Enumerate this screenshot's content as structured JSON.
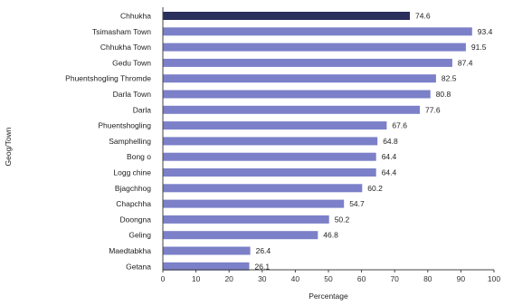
{
  "chart_data": {
    "type": "bar",
    "orientation": "horizontal",
    "categories": [
      "Chhukha",
      "Tsimasham Town",
      "Chhukha Town",
      "Gedu Town",
      "Phuentshogling Thromde",
      "Darla Town",
      "Darla",
      "Phuentshogling",
      "Samphelling",
      "Bong o",
      "Logg chine",
      "Bjagchhog",
      "Chapchha",
      "Doongna",
      "Geling",
      "Maedtabkha",
      "Getana"
    ],
    "values": [
      74.6,
      93.4,
      91.5,
      87.4,
      82.5,
      80.8,
      77.6,
      67.6,
      64.8,
      64.4,
      64.4,
      60.2,
      54.7,
      50.2,
      46.8,
      26.4,
      26.1
    ],
    "value_labels": [
      "74.6",
      "93.4",
      "91.5",
      "87.4",
      "82.5",
      "80.8",
      "77.6",
      "67.6",
      "64.8",
      "64.4",
      "64.4",
      "60.2",
      "54.7",
      "50.2",
      "46.8",
      "26.4",
      "26.1"
    ],
    "highlight_index": 0,
    "xlabel": "Percentage",
    "ylabel": "Geog/Town",
    "xlim": [
      0,
      100
    ],
    "xticks": [
      "0",
      "10",
      "20",
      "30",
      "40",
      "50",
      "60",
      "70",
      "80",
      "90",
      "100"
    ],
    "grid": false,
    "colors": {
      "bar": "#7b80c8",
      "highlight": "#2b2f5c"
    }
  }
}
